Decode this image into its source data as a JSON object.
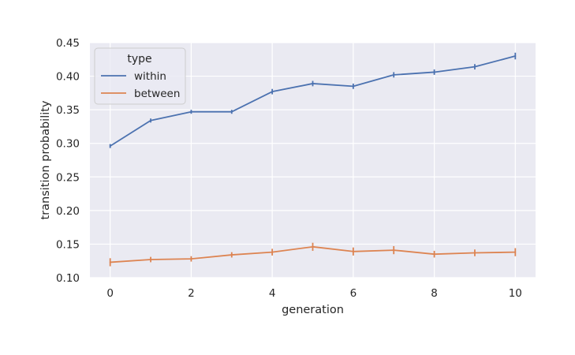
{
  "chart_data": {
    "type": "line",
    "xlabel": "generation",
    "ylabel": "transition probability",
    "xlim": [
      -0.5,
      10.5
    ],
    "ylim": [
      0.1,
      0.45
    ],
    "x_ticks": [
      0,
      2,
      4,
      6,
      8,
      10
    ],
    "y_ticks": [
      0.1,
      0.15,
      0.2,
      0.25,
      0.3,
      0.35,
      0.4,
      0.45
    ],
    "x_tick_labels": [
      "0",
      "2",
      "4",
      "6",
      "8",
      "10"
    ],
    "y_tick_labels": [
      "0.10",
      "0.15",
      "0.20",
      "0.25",
      "0.30",
      "0.35",
      "0.40",
      "0.45"
    ],
    "grid": true,
    "legend": {
      "title": "type",
      "placement": "top-left"
    },
    "x": [
      0,
      1,
      2,
      3,
      4,
      5,
      6,
      7,
      8,
      9,
      10
    ],
    "series": [
      {
        "name": "within",
        "color": "#4c72b0",
        "values": [
          0.296,
          0.334,
          0.347,
          0.347,
          0.377,
          0.389,
          0.385,
          0.402,
          0.406,
          0.414,
          0.43
        ],
        "err_low": [
          0.293,
          0.331,
          0.344,
          0.344,
          0.373,
          0.385,
          0.381,
          0.398,
          0.402,
          0.41,
          0.425
        ],
        "err_high": [
          0.299,
          0.337,
          0.35,
          0.35,
          0.381,
          0.393,
          0.389,
          0.406,
          0.41,
          0.418,
          0.435
        ]
      },
      {
        "name": "between",
        "color": "#dd8452",
        "values": [
          0.123,
          0.127,
          0.128,
          0.134,
          0.138,
          0.146,
          0.139,
          0.141,
          0.135,
          0.137,
          0.138
        ],
        "err_low": [
          0.117,
          0.123,
          0.124,
          0.13,
          0.133,
          0.14,
          0.133,
          0.135,
          0.13,
          0.132,
          0.132
        ],
        "err_high": [
          0.129,
          0.131,
          0.132,
          0.138,
          0.143,
          0.152,
          0.145,
          0.147,
          0.14,
          0.142,
          0.144
        ]
      }
    ]
  }
}
